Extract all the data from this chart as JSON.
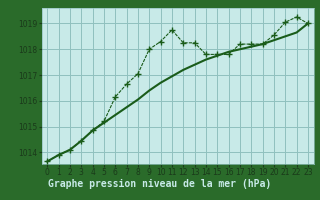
{
  "title": "Graphe pression niveau de la mer (hPa)",
  "bg_color": "#c8eae8",
  "plot_bg": "#c8eae8",
  "grid_color": "#90c0be",
  "line_color": "#1a5c1a",
  "title_bg": "#2a6b2a",
  "title_fg": "#c8eae8",
  "ylim": [
    1013.55,
    1019.6
  ],
  "yticks": [
    1014,
    1015,
    1016,
    1017,
    1018,
    1019
  ],
  "xlim": [
    -0.5,
    23.5
  ],
  "xticks": [
    0,
    1,
    2,
    3,
    4,
    5,
    6,
    7,
    8,
    9,
    10,
    11,
    12,
    13,
    14,
    15,
    16,
    17,
    18,
    19,
    20,
    21,
    22,
    23
  ],
  "series1_x": [
    0,
    1,
    2,
    3,
    4,
    5,
    6,
    7,
    8,
    9,
    10,
    11,
    12,
    13,
    14,
    15,
    16,
    17,
    18,
    19,
    20,
    21,
    22,
    23
  ],
  "series1_y": [
    1013.65,
    1013.9,
    1014.1,
    1014.45,
    1014.85,
    1015.2,
    1016.15,
    1016.65,
    1017.05,
    1018.0,
    1018.3,
    1018.75,
    1018.25,
    1018.25,
    1017.8,
    1017.8,
    1017.8,
    1018.2,
    1018.2,
    1018.2,
    1018.55,
    1019.05,
    1019.25,
    1019.0
  ],
  "series2_x": [
    0,
    1,
    2,
    3,
    4,
    5,
    6,
    7,
    8,
    9,
    10,
    11,
    12,
    13,
    14,
    15,
    16,
    17,
    18,
    19,
    20,
    21,
    22,
    23
  ],
  "series2_y": [
    1013.65,
    1013.9,
    1014.1,
    1014.45,
    1014.85,
    1015.15,
    1015.45,
    1015.75,
    1016.05,
    1016.4,
    1016.7,
    1016.95,
    1017.2,
    1017.4,
    1017.6,
    1017.75,
    1017.9,
    1018.0,
    1018.1,
    1018.2,
    1018.35,
    1018.5,
    1018.65,
    1019.0
  ]
}
